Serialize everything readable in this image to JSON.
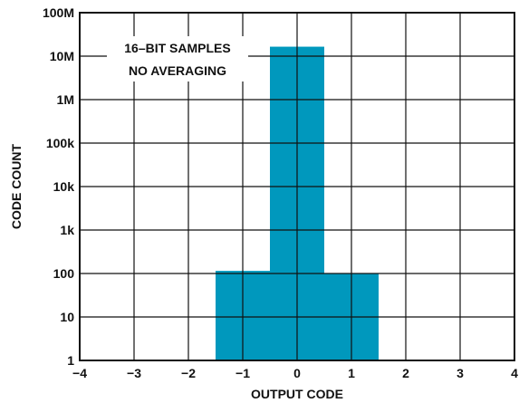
{
  "chart_data": {
    "type": "bar",
    "title": "",
    "xlabel": "OUTPUT CODE",
    "ylabel": "CODE COUNT",
    "x_ticks": [
      "−4",
      "−3",
      "−2",
      "−1",
      "0",
      "1",
      "2",
      "3",
      "4"
    ],
    "x_range": [
      -4,
      4
    ],
    "y_scale": "log",
    "y_range": [
      1,
      100000000
    ],
    "y_ticks": [
      1,
      10,
      100,
      1000,
      10000,
      100000,
      1000000,
      10000000,
      100000000
    ],
    "y_tick_labels": [
      "1",
      "10",
      "100",
      "1k",
      "10k",
      "100k",
      "1M",
      "10M",
      "100M"
    ],
    "grid": true,
    "bar_color": "#0098BD",
    "annotation_lines": [
      "16–BIT SAMPLES",
      "NO AVERAGING"
    ],
    "categories": [
      "−1",
      "0",
      "1"
    ],
    "bars": [
      {
        "x": -1,
        "value": 115
      },
      {
        "x": 0,
        "value": 16500000
      },
      {
        "x": 1,
        "value": 100
      }
    ]
  }
}
